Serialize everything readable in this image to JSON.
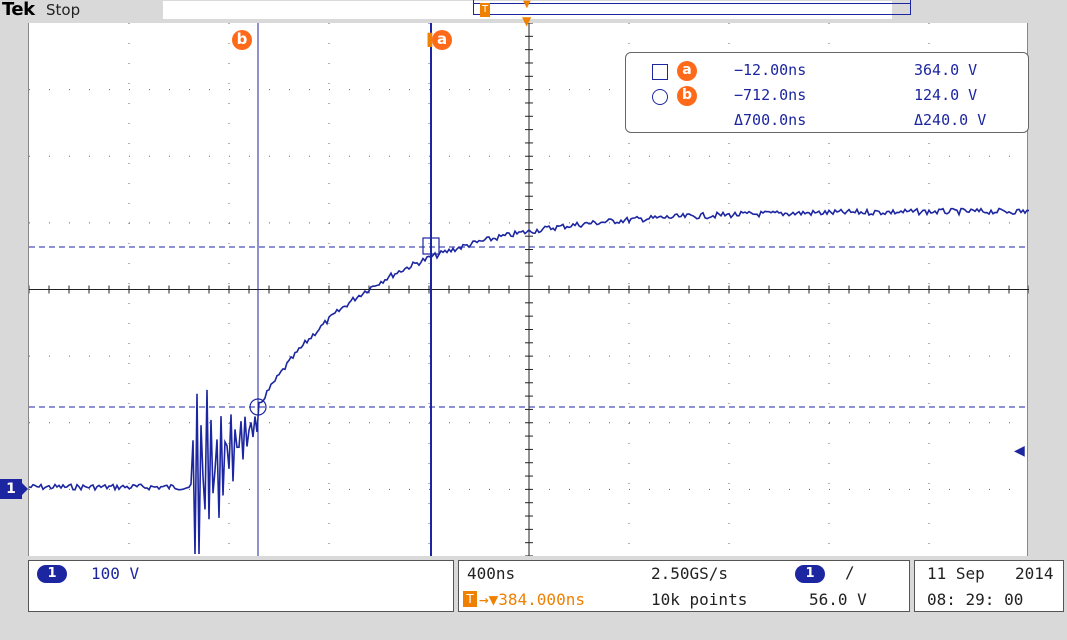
{
  "top": {
    "brand": "Tek",
    "state": "Stop",
    "record_marker": "T"
  },
  "cursors": {
    "a_label": "a",
    "b_label": "b",
    "readout": {
      "a": {
        "label": "a",
        "time": "−12.00ns",
        "volt": "364.0 V"
      },
      "b": {
        "label": "b",
        "time": "−712.0ns",
        "volt": "124.0 V"
      },
      "delta": {
        "time": "Δ700.0ns",
        "volt": "Δ240.0 V"
      }
    }
  },
  "channel": {
    "marker": "1",
    "scale_badge": "1",
    "scale": "100 V"
  },
  "horizontal": {
    "time_div": "400ns",
    "sample_rate": "2.50GS/s",
    "trigger_pos": "→▼384.000ns",
    "trigger_icon": "T",
    "record_length": "10k points"
  },
  "trigger": {
    "source_badge": "1",
    "slope": "∕",
    "level": "56.0 V"
  },
  "datetime": {
    "date_day_month": "11 Sep",
    "year": "2014",
    "time": "08: 29: 00"
  },
  "colors": {
    "trace": "#1c26a0",
    "cursor_label": "#ff6a1a",
    "trigger": "#f08000",
    "graticule": "#000000"
  }
}
